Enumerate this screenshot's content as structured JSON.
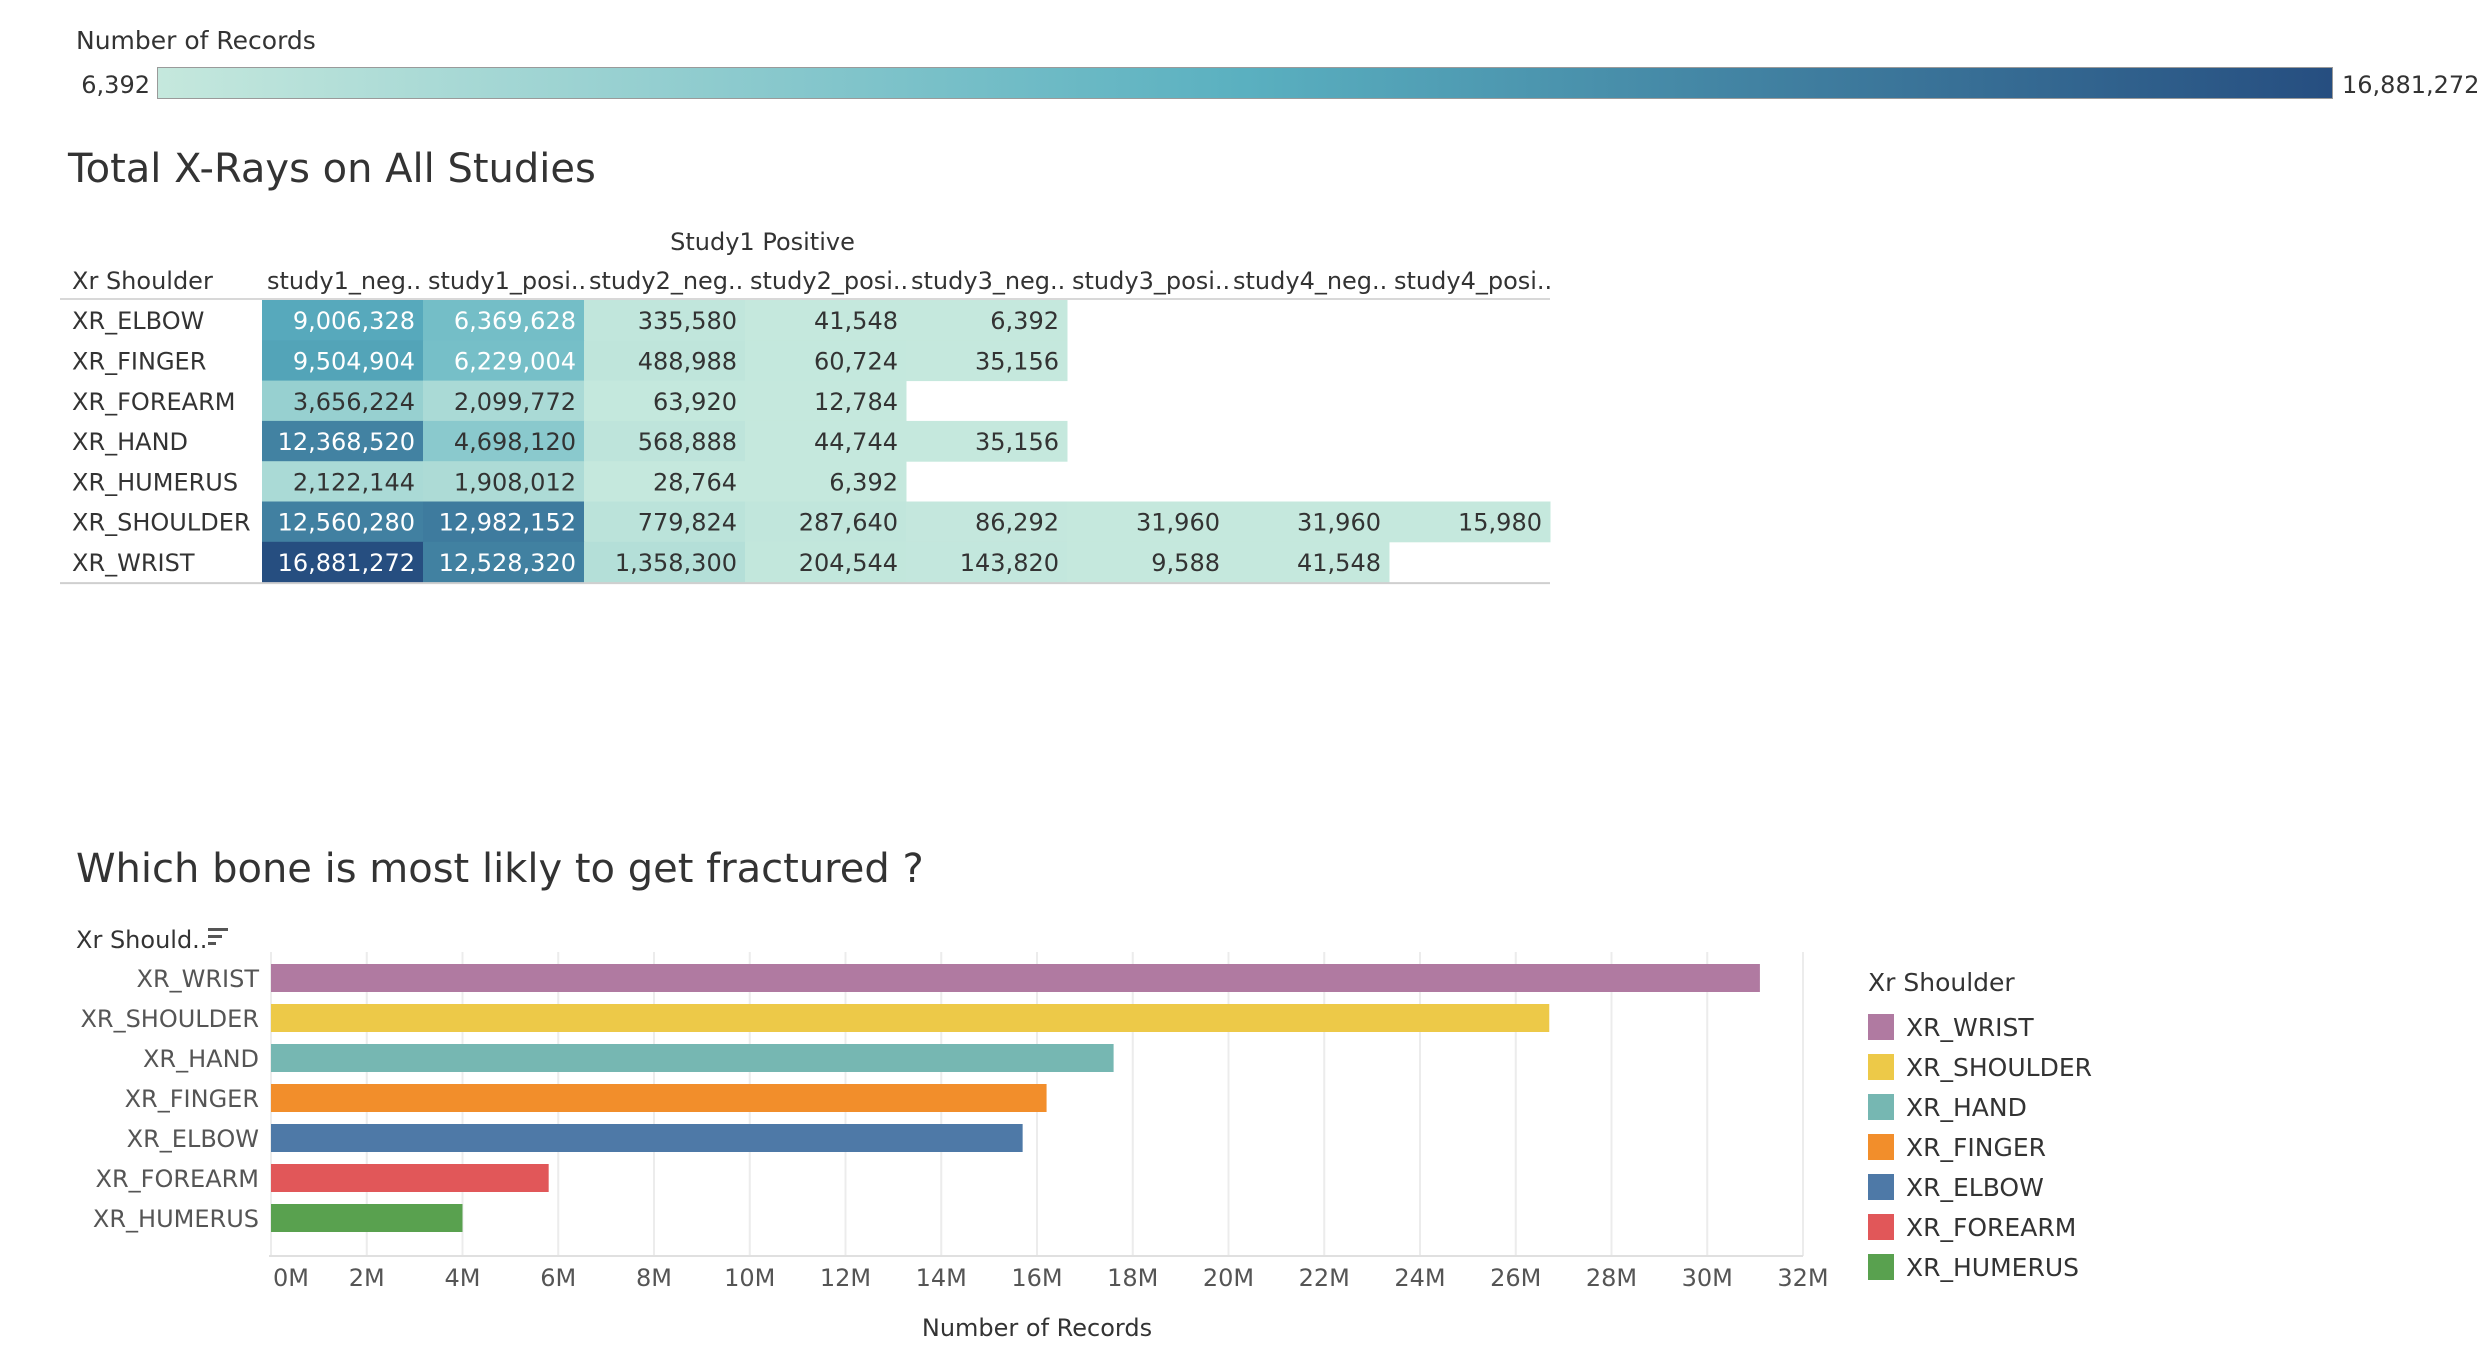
{
  "color_legend": {
    "title": "Number of Records",
    "min_label": "6,392",
    "max_label": "16,881,272",
    "min_value": 6392,
    "max_value": 16881272,
    "color_low": "#c5e8dd",
    "color_mid": "#5ab0c0",
    "color_high": "#264e80"
  },
  "table_title": "Total X-Rays on All Studies",
  "chart_data": [
    {
      "type": "heatmap",
      "title": "Total X-Rays on All Studies",
      "column_group_header": "Study1 Positive",
      "row_header": "Xr Shoulder",
      "columns": [
        "study1_neg..",
        "study1_posi..",
        "study2_neg..",
        "study2_posi..",
        "study3_neg..",
        "study3_posi..",
        "study4_neg..",
        "study4_posi.."
      ],
      "rows": [
        {
          "label": "XR_ELBOW",
          "values": [
            9006328,
            6369628,
            335580,
            41548,
            6392,
            null,
            null,
            null
          ],
          "display": [
            "9,006,328",
            "6,369,628",
            "335,580",
            "41,548",
            "6,392",
            "",
            "",
            ""
          ]
        },
        {
          "label": "XR_FINGER",
          "values": [
            9504904,
            6229004,
            488988,
            60724,
            35156,
            null,
            null,
            null
          ],
          "display": [
            "9,504,904",
            "6,229,004",
            "488,988",
            "60,724",
            "35,156",
            "",
            "",
            ""
          ]
        },
        {
          "label": "XR_FOREARM",
          "values": [
            3656224,
            2099772,
            63920,
            12784,
            null,
            null,
            null,
            null
          ],
          "display": [
            "3,656,224",
            "2,099,772",
            "63,920",
            "12,784",
            "",
            "",
            "",
            ""
          ]
        },
        {
          "label": "XR_HAND",
          "values": [
            12368520,
            4698120,
            568888,
            44744,
            35156,
            null,
            null,
            null
          ],
          "display": [
            "12,368,520",
            "4,698,120",
            "568,888",
            "44,744",
            "35,156",
            "",
            "",
            ""
          ]
        },
        {
          "label": "XR_HUMERUS",
          "values": [
            2122144,
            1908012,
            28764,
            6392,
            null,
            null,
            null,
            null
          ],
          "display": [
            "2,122,144",
            "1,908,012",
            "28,764",
            "6,392",
            "",
            "",
            "",
            ""
          ]
        },
        {
          "label": "XR_SHOULDER",
          "values": [
            12560280,
            12982152,
            779824,
            287640,
            86292,
            31960,
            31960,
            15980
          ],
          "display": [
            "12,560,280",
            "12,982,152",
            "779,824",
            "287,640",
            "86,292",
            "31,960",
            "31,960",
            "15,980"
          ]
        },
        {
          "label": "XR_WRIST",
          "values": [
            16881272,
            12528320,
            1358300,
            204544,
            143820,
            9588,
            41548,
            null
          ],
          "display": [
            "16,881,272",
            "12,528,320",
            "1,358,300",
            "204,544",
            "143,820",
            "9,588",
            "41,548",
            ""
          ]
        }
      ]
    },
    {
      "type": "bar",
      "orientation": "horizontal",
      "title": "Which bone is most likly to get fractured ?",
      "ylabel": "Xr Should..",
      "xlabel": "Number of Records",
      "xlim": [
        0,
        32000000
      ],
      "xticks": [
        "0M",
        "2M",
        "4M",
        "6M",
        "8M",
        "10M",
        "12M",
        "14M",
        "16M",
        "18M",
        "20M",
        "22M",
        "24M",
        "26M",
        "28M",
        "30M",
        "32M"
      ],
      "grid": true,
      "legend_title": "Xr Shoulder",
      "legend_position": "right",
      "categories": [
        "XR_WRIST",
        "XR_SHOULDER",
        "XR_HAND",
        "XR_FINGER",
        "XR_ELBOW",
        "XR_FOREARM",
        "XR_HUMERUS"
      ],
      "values": [
        31100000,
        26700000,
        17600000,
        16200000,
        15700000,
        5800000,
        4000000
      ],
      "colors": [
        "#b07aa1",
        "#edc948",
        "#76b7b2",
        "#f28e2b",
        "#4e79a7",
        "#e15759",
        "#59a14f"
      ]
    }
  ]
}
